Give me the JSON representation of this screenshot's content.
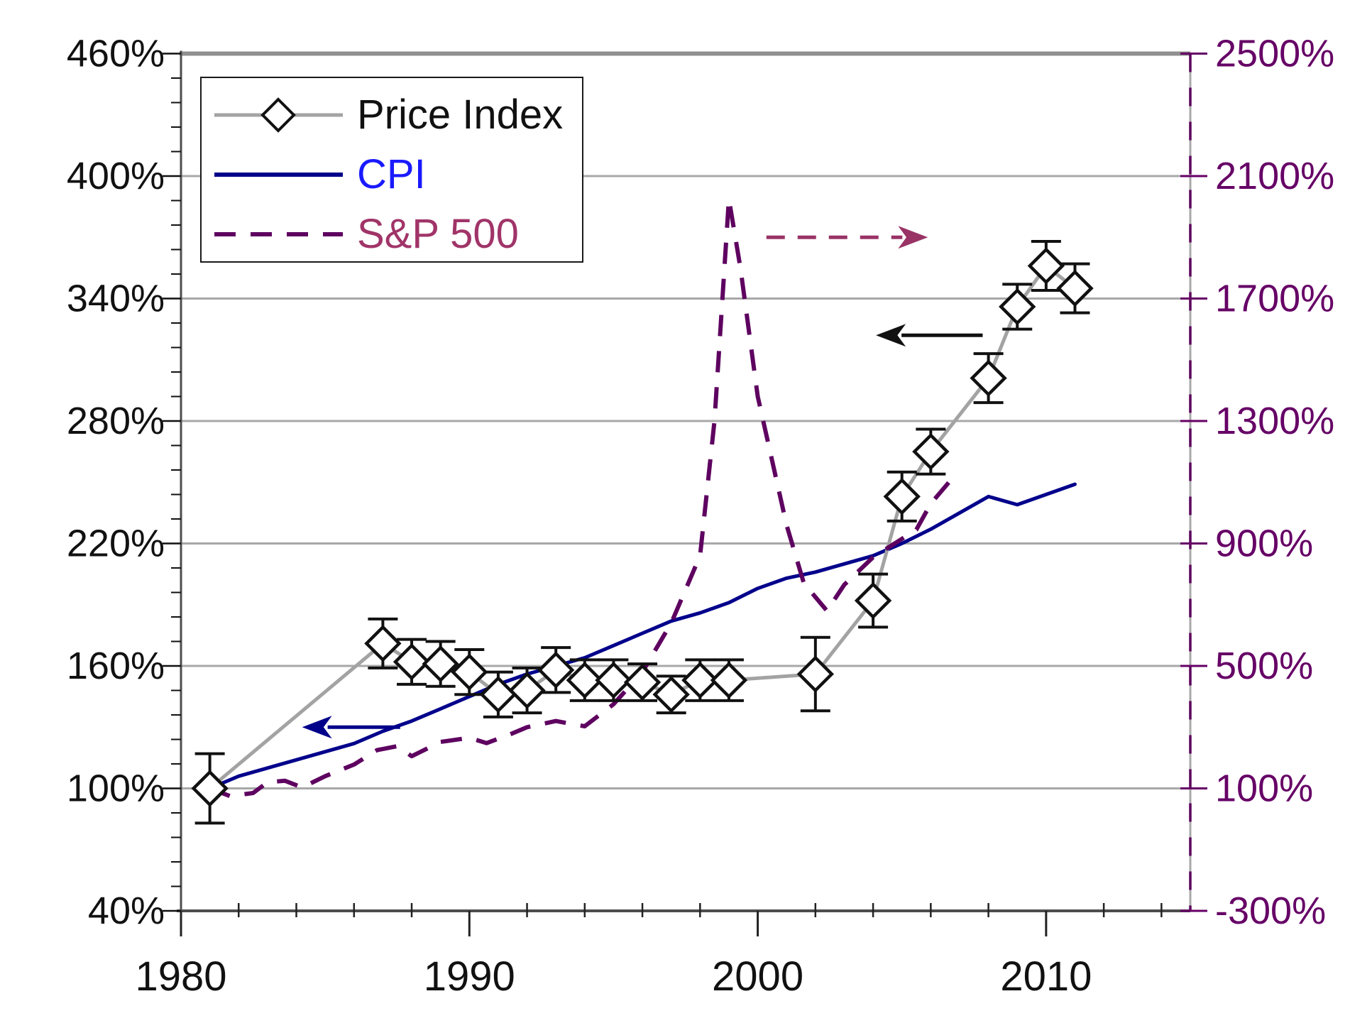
{
  "chart_data": {
    "type": "line",
    "title": "",
    "grid": "horizontal-on",
    "legend_position": "top-left",
    "x_axis": {
      "range_years": [
        1980,
        2015
      ],
      "tick_labels": [
        "1980",
        "1990",
        "2000",
        "2010"
      ],
      "tick_years": [
        1980,
        1990,
        2000,
        2010
      ],
      "minor_tick_step_years": 2,
      "label_color": "#111111"
    },
    "left_axis": {
      "range": [
        40,
        460
      ],
      "major_step": 60,
      "minor_step": 12,
      "tick_labels": [
        "460%",
        "400%",
        "340%",
        "280%",
        "220%",
        "160%",
        "100%",
        "40%"
      ],
      "tick_values": [
        460,
        400,
        340,
        280,
        220,
        160,
        100,
        40
      ],
      "label_color": "#111111"
    },
    "right_axis": {
      "range": [
        -300,
        2500
      ],
      "major_step": 400,
      "tick_labels": [
        "2500%",
        "2100%",
        "1700%",
        "1300%",
        "900%",
        "500%",
        "100%",
        "-300%"
      ],
      "tick_values": [
        2500,
        2100,
        1700,
        1300,
        900,
        500,
        100,
        -300
      ],
      "label_color": "#660066"
    },
    "series": [
      {
        "name": "Price Index",
        "axis": "left",
        "style": "solid line with open diamond markers and error bars",
        "line_color": "#a3a3a3",
        "marker_stroke": "#111111",
        "marker_fill": "#ffffff",
        "points": [
          {
            "year": 1981,
            "value": 100,
            "err": 17
          },
          {
            "year": 1987,
            "value": 171,
            "err": 12
          },
          {
            "year": 1988,
            "value": 162,
            "err": 11
          },
          {
            "year": 1989,
            "value": 161,
            "err": 11
          },
          {
            "year": 1990,
            "value": 157,
            "err": 11
          },
          {
            "year": 1991,
            "value": 146,
            "err": 11
          },
          {
            "year": 1992,
            "value": 148,
            "err": 11
          },
          {
            "year": 1993,
            "value": 158,
            "err": 11
          },
          {
            "year": 1994,
            "value": 153,
            "err": 10
          },
          {
            "year": 1995,
            "value": 153,
            "err": 10
          },
          {
            "year": 1996,
            "value": 152,
            "err": 9
          },
          {
            "year": 1997,
            "value": 146,
            "err": 9
          },
          {
            "year": 1998,
            "value": 153,
            "err": 10
          },
          {
            "year": 1999,
            "value": 153,
            "err": 10
          },
          {
            "year": 2002,
            "value": 156,
            "err": 18
          },
          {
            "year": 2004,
            "value": 192,
            "err": 13
          },
          {
            "year": 2005,
            "value": 243,
            "err": 12
          },
          {
            "year": 2006,
            "value": 265,
            "err": 11
          },
          {
            "year": 2008,
            "value": 301,
            "err": 12
          },
          {
            "year": 2009,
            "value": 336,
            "err": 11
          },
          {
            "year": 2010,
            "value": 356,
            "err": 12
          },
          {
            "year": 2011,
            "value": 345,
            "err": 12
          }
        ]
      },
      {
        "name": "CPI",
        "axis": "left",
        "style": "solid line",
        "line_color": "#00008b",
        "label_color": "#1a1aff",
        "points": [
          [
            1981,
            100
          ],
          [
            1982,
            106
          ],
          [
            1983,
            110
          ],
          [
            1984,
            114
          ],
          [
            1985,
            118
          ],
          [
            1986,
            122
          ],
          [
            1987,
            128
          ],
          [
            1988,
            133
          ],
          [
            1989,
            139
          ],
          [
            1990,
            145
          ],
          [
            1991,
            151
          ],
          [
            1992,
            156
          ],
          [
            1993,
            160
          ],
          [
            1994,
            164
          ],
          [
            1995,
            170
          ],
          [
            1996,
            176
          ],
          [
            1997,
            182
          ],
          [
            1998,
            186
          ],
          [
            1999,
            191
          ],
          [
            2000,
            198
          ],
          [
            2001,
            203
          ],
          [
            2002,
            206
          ],
          [
            2003,
            210
          ],
          [
            2004,
            214
          ],
          [
            2005,
            220
          ],
          [
            2006,
            227
          ],
          [
            2007,
            235
          ],
          [
            2008,
            243
          ],
          [
            2009,
            239
          ],
          [
            2010,
            244
          ],
          [
            2011,
            249
          ]
        ]
      },
      {
        "name": "S&P 500",
        "axis": "right",
        "style": "dashed line",
        "line_color": "#5e0060",
        "label_color": "#a03468",
        "points": [
          [
            1981,
            100
          ],
          [
            1981.7,
            75
          ],
          [
            1982.5,
            85
          ],
          [
            1983,
            120
          ],
          [
            1983.6,
            125
          ],
          [
            1984.2,
            103
          ],
          [
            1985,
            140
          ],
          [
            1986,
            178
          ],
          [
            1986.8,
            225
          ],
          [
            1987.5,
            238
          ],
          [
            1988,
            205
          ],
          [
            1989,
            252
          ],
          [
            1990,
            265
          ],
          [
            1990.6,
            248
          ],
          [
            1991.5,
            280
          ],
          [
            1992,
            300
          ],
          [
            1993,
            320
          ],
          [
            1994,
            303
          ],
          [
            1995,
            375
          ],
          [
            1996,
            480
          ],
          [
            1997,
            640
          ],
          [
            1998,
            860
          ],
          [
            1998.5,
            1300
          ],
          [
            1999,
            2025
          ],
          [
            1999.4,
            1800
          ],
          [
            2000,
            1380
          ],
          [
            2000.5,
            1170
          ],
          [
            2001,
            960
          ],
          [
            2001.6,
            770
          ],
          [
            2002.4,
            680
          ],
          [
            2003,
            765
          ],
          [
            2004,
            855
          ],
          [
            2005,
            915
          ],
          [
            2005.5,
            945
          ],
          [
            2006,
            1030
          ],
          [
            2006.9,
            1130
          ]
        ]
      }
    ],
    "annotations": [
      {
        "id": "cpi-left-axis-arrow",
        "direction": "left",
        "axis": "left",
        "value": 130,
        "year_from": 1987.6,
        "year_to": 1984.2,
        "color": "#00008b",
        "dashed": false
      },
      {
        "id": "price-index-left-axis-arrow",
        "direction": "left",
        "axis": "left",
        "value": 322,
        "year_from": 2007.8,
        "year_to": 2004.1,
        "color": "#111111",
        "dashed": false
      },
      {
        "id": "sp500-right-axis-arrow",
        "direction": "right",
        "axis": "right",
        "value": 1900,
        "year_from": 2000.3,
        "year_to": 2005.9,
        "color": "#993366",
        "dashed": true
      }
    ],
    "legend": {
      "items": [
        {
          "label": "Price Index"
        },
        {
          "label": "CPI"
        },
        {
          "label": "S&P 500"
        }
      ]
    },
    "colors": {
      "gridline": "#a8a8a8",
      "plot_top_border": "#8f8f8f",
      "axis_dark": "#4d4d4d",
      "right_spine_gray": "#a8a8a8",
      "right_spine_dash": "#5a005a",
      "error_bar": "#111111"
    }
  }
}
